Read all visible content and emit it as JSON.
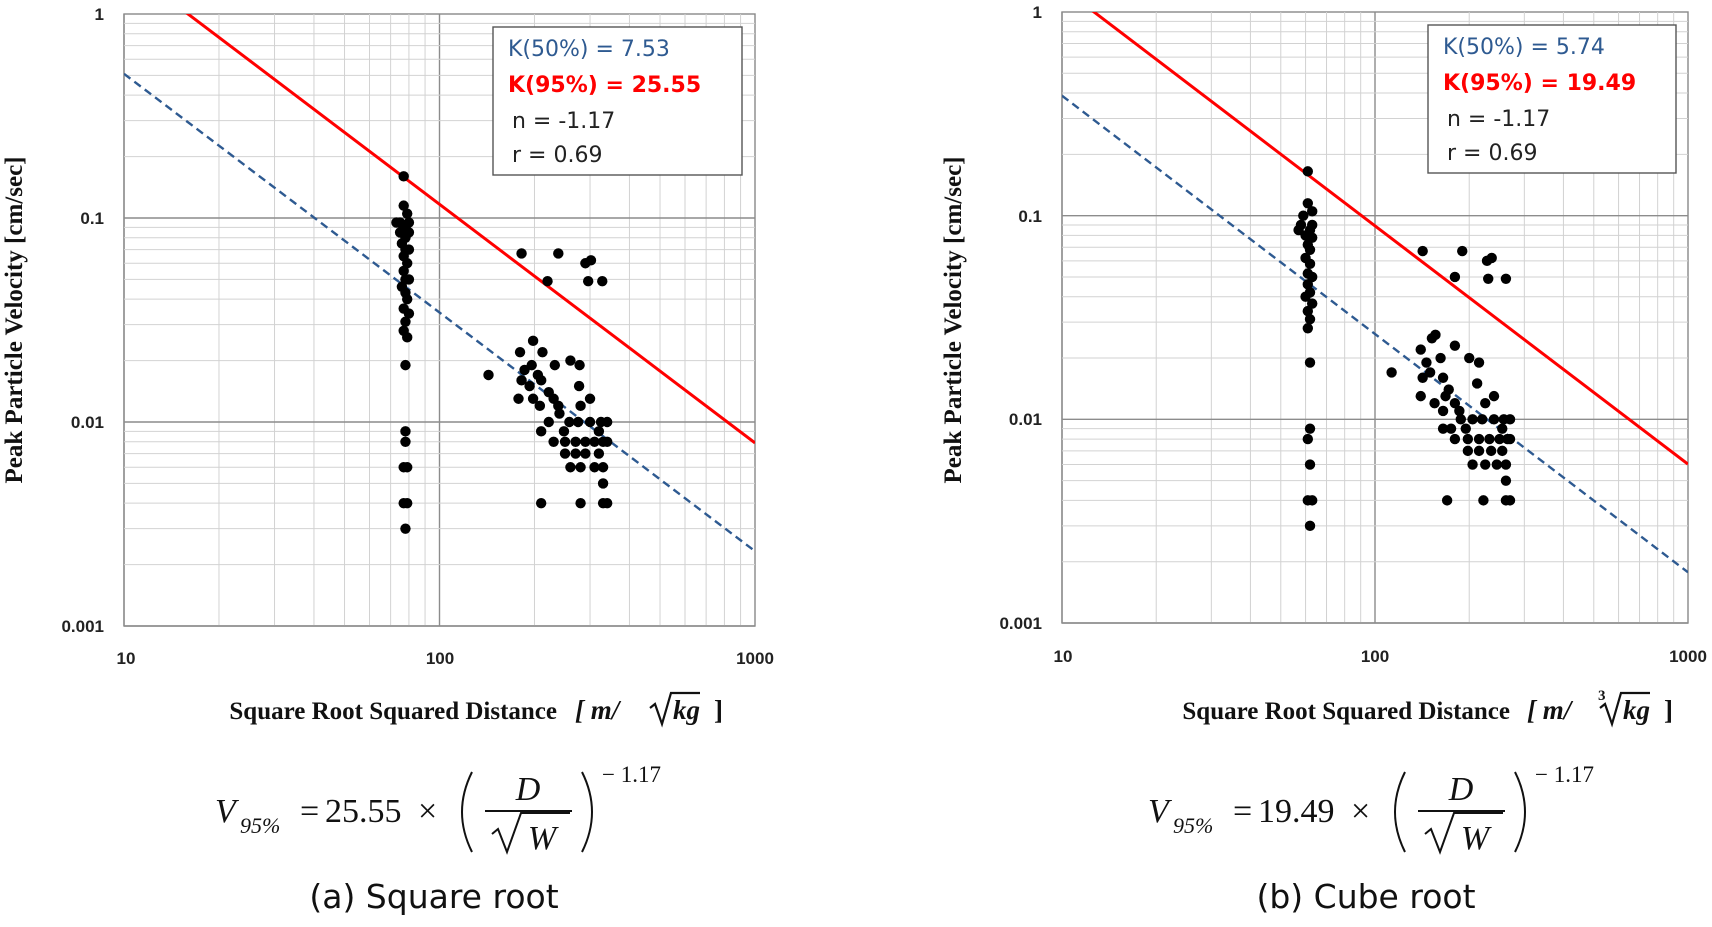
{
  "chart_data": [
    {
      "type": "scatter",
      "panel": "(a)",
      "caption": "(a) Square root",
      "xlabel": "Square Root Squared Distance",
      "xunit_prefix": "[ m/",
      "xunit_root_index": "",
      "xunit_radicand": "kg",
      "xunit_suffix": "]",
      "ylabel": "Peak Particle Velocity [cm/sec]",
      "xscale": "log",
      "yscale": "log",
      "xlim": [
        10,
        1000
      ],
      "ylim": [
        0.001,
        1
      ],
      "x_ticks": [
        "10",
        "100",
        "1000"
      ],
      "y_ticks": [
        "0.001",
        "0.01",
        "0.1",
        "1"
      ],
      "grid": true,
      "legend_position": "top-right",
      "legend": {
        "k50": "K(50%) = 7.53",
        "k95": "K(95%) = 25.55",
        "n": "n = -1.17",
        "r": "r = 0.69"
      },
      "colors": {
        "k50": "#2e5a91",
        "k95": "#ff0000"
      },
      "lines": [
        {
          "key": "k95",
          "K": 25.55,
          "n": -1.17,
          "style": "solid",
          "color": "#ff0000"
        },
        {
          "key": "k50",
          "K": 7.53,
          "n": -1.17,
          "style": "dashed",
          "color": "#2e5a91"
        }
      ],
      "formula": {
        "lhs": "V",
        "lhs_sub": "95%",
        "coef": "25.55",
        "times": "×",
        "num": "D",
        "den": "W",
        "root_index": "",
        "exponent": "− 1.17"
      },
      "points": [
        [
          75,
          0.095
        ],
        [
          77,
          0.16
        ],
        [
          77,
          0.115
        ],
        [
          79,
          0.105
        ],
        [
          75,
          0.085
        ],
        [
          73,
          0.095
        ],
        [
          80,
          0.095
        ],
        [
          78,
          0.09
        ],
        [
          80,
          0.085
        ],
        [
          78,
          0.08
        ],
        [
          76,
          0.075
        ],
        [
          78,
          0.07
        ],
        [
          80,
          0.07
        ],
        [
          77,
          0.065
        ],
        [
          79,
          0.06
        ],
        [
          77,
          0.055
        ],
        [
          78,
          0.05
        ],
        [
          80,
          0.05
        ],
        [
          76,
          0.046
        ],
        [
          78,
          0.043
        ],
        [
          79,
          0.04
        ],
        [
          77,
          0.036
        ],
        [
          80,
          0.034
        ],
        [
          78,
          0.031
        ],
        [
          77,
          0.028
        ],
        [
          79,
          0.026
        ],
        [
          78,
          0.019
        ],
        [
          78,
          0.009
        ],
        [
          78,
          0.008
        ],
        [
          77,
          0.006
        ],
        [
          79,
          0.006
        ],
        [
          77,
          0.004
        ],
        [
          79,
          0.004
        ],
        [
          78,
          0.003
        ],
        [
          182,
          0.067
        ],
        [
          220,
          0.049
        ],
        [
          238,
          0.067
        ],
        [
          290,
          0.06
        ],
        [
          302,
          0.062
        ],
        [
          296,
          0.049
        ],
        [
          328,
          0.049
        ],
        [
          143,
          0.017
        ],
        [
          180,
          0.022
        ],
        [
          186,
          0.018
        ],
        [
          198,
          0.025
        ],
        [
          196,
          0.019
        ],
        [
          205,
          0.017
        ],
        [
          193,
          0.015
        ],
        [
          182,
          0.016
        ],
        [
          178,
          0.013
        ],
        [
          210,
          0.016
        ],
        [
          222,
          0.014
        ],
        [
          232,
          0.019
        ],
        [
          212,
          0.022
        ],
        [
          260,
          0.02
        ],
        [
          278,
          0.019
        ],
        [
          277,
          0.015
        ],
        [
          230,
          0.013
        ],
        [
          198,
          0.013
        ],
        [
          238,
          0.012
        ],
        [
          208,
          0.012
        ],
        [
          240,
          0.011
        ],
        [
          258,
          0.01
        ],
        [
          222,
          0.01
        ],
        [
          248,
          0.009
        ],
        [
          210,
          0.009
        ],
        [
          230,
          0.008
        ],
        [
          250,
          0.008
        ],
        [
          270,
          0.008
        ],
        [
          290,
          0.008
        ],
        [
          310,
          0.008
        ],
        [
          330,
          0.008
        ],
        [
          250,
          0.007
        ],
        [
          270,
          0.007
        ],
        [
          290,
          0.007
        ],
        [
          320,
          0.007
        ],
        [
          260,
          0.006
        ],
        [
          280,
          0.006
        ],
        [
          310,
          0.006
        ],
        [
          330,
          0.006
        ],
        [
          275,
          0.01
        ],
        [
          300,
          0.01
        ],
        [
          325,
          0.01
        ],
        [
          340,
          0.01
        ],
        [
          300,
          0.013
        ],
        [
          280,
          0.012
        ],
        [
          320,
          0.009
        ],
        [
          340,
          0.008
        ],
        [
          330,
          0.005
        ],
        [
          210,
          0.004
        ],
        [
          280,
          0.004
        ],
        [
          330,
          0.004
        ],
        [
          340,
          0.004
        ]
      ]
    },
    {
      "type": "scatter",
      "panel": "(b)",
      "caption": "(b) Cube root",
      "xlabel": "Square Root Squared Distance",
      "xunit_prefix": "[ m/",
      "xunit_root_index": "3",
      "xunit_radicand": "kg",
      "xunit_suffix": "]",
      "ylabel": "Peak Particle Velocity [cm/sec]",
      "xscale": "log",
      "yscale": "log",
      "xlim": [
        10,
        1000
      ],
      "ylim": [
        0.001,
        1
      ],
      "x_ticks": [
        "10",
        "100",
        "1000"
      ],
      "y_ticks": [
        "0.001",
        "0.01",
        "0.1",
        "1"
      ],
      "grid": true,
      "legend_position": "top-right",
      "legend": {
        "k50": "K(50%) = 5.74",
        "k95": "K(95%) = 19.49",
        "n": "n = -1.17",
        "r": "r = 0.69"
      },
      "colors": {
        "k50": "#2e5a91",
        "k95": "#ff0000"
      },
      "lines": [
        {
          "key": "k95",
          "K": 19.49,
          "n": -1.17,
          "style": "solid",
          "color": "#ff0000"
        },
        {
          "key": "k50",
          "K": 5.74,
          "n": -1.17,
          "style": "dashed",
          "color": "#2e5a91"
        }
      ],
      "formula": {
        "lhs": "V",
        "lhs_sub": "95%",
        "coef": "19.49",
        "times": "×",
        "num": "D",
        "den": "W",
        "root_index": "",
        "exponent": "− 1.17"
      },
      "points": [
        [
          58,
          0.09
        ],
        [
          61,
          0.165
        ],
        [
          61,
          0.115
        ],
        [
          63,
          0.105
        ],
        [
          59,
          0.1
        ],
        [
          57,
          0.085
        ],
        [
          63,
          0.09
        ],
        [
          62,
          0.085
        ],
        [
          60,
          0.08
        ],
        [
          63,
          0.078
        ],
        [
          61,
          0.072
        ],
        [
          62,
          0.068
        ],
        [
          60,
          0.062
        ],
        [
          62,
          0.058
        ],
        [
          61,
          0.052
        ],
        [
          63,
          0.05
        ],
        [
          61,
          0.046
        ],
        [
          62,
          0.042
        ],
        [
          60,
          0.04
        ],
        [
          63,
          0.037
        ],
        [
          61,
          0.034
        ],
        [
          62,
          0.031
        ],
        [
          61,
          0.028
        ],
        [
          62,
          0.019
        ],
        [
          62,
          0.009
        ],
        [
          61,
          0.008
        ],
        [
          62,
          0.006
        ],
        [
          61,
          0.004
        ],
        [
          63,
          0.004
        ],
        [
          62,
          0.003
        ],
        [
          142,
          0.067
        ],
        [
          180,
          0.05
        ],
        [
          190,
          0.067
        ],
        [
          228,
          0.06
        ],
        [
          236,
          0.062
        ],
        [
          230,
          0.049
        ],
        [
          262,
          0.049
        ],
        [
          113,
          0.017
        ],
        [
          140,
          0.022
        ],
        [
          146,
          0.019
        ],
        [
          152,
          0.025
        ],
        [
          156,
          0.026
        ],
        [
          162,
          0.02
        ],
        [
          150,
          0.017
        ],
        [
          142,
          0.016
        ],
        [
          140,
          0.013
        ],
        [
          165,
          0.016
        ],
        [
          172,
          0.014
        ],
        [
          180,
          0.023
        ],
        [
          168,
          0.013
        ],
        [
          200,
          0.02
        ],
        [
          215,
          0.019
        ],
        [
          212,
          0.015
        ],
        [
          180,
          0.012
        ],
        [
          155,
          0.012
        ],
        [
          186,
          0.011
        ],
        [
          165,
          0.011
        ],
        [
          188,
          0.01
        ],
        [
          205,
          0.01
        ],
        [
          175,
          0.009
        ],
        [
          195,
          0.009
        ],
        [
          165,
          0.009
        ],
        [
          180,
          0.008
        ],
        [
          198,
          0.008
        ],
        [
          215,
          0.008
        ],
        [
          232,
          0.008
        ],
        [
          250,
          0.008
        ],
        [
          265,
          0.008
        ],
        [
          198,
          0.007
        ],
        [
          215,
          0.007
        ],
        [
          235,
          0.007
        ],
        [
          255,
          0.007
        ],
        [
          205,
          0.006
        ],
        [
          225,
          0.006
        ],
        [
          245,
          0.006
        ],
        [
          262,
          0.006
        ],
        [
          220,
          0.01
        ],
        [
          240,
          0.01
        ],
        [
          258,
          0.01
        ],
        [
          270,
          0.01
        ],
        [
          240,
          0.013
        ],
        [
          225,
          0.012
        ],
        [
          255,
          0.009
        ],
        [
          270,
          0.008
        ],
        [
          262,
          0.005
        ],
        [
          170,
          0.004
        ],
        [
          222,
          0.004
        ],
        [
          262,
          0.004
        ],
        [
          270,
          0.004
        ]
      ]
    }
  ]
}
